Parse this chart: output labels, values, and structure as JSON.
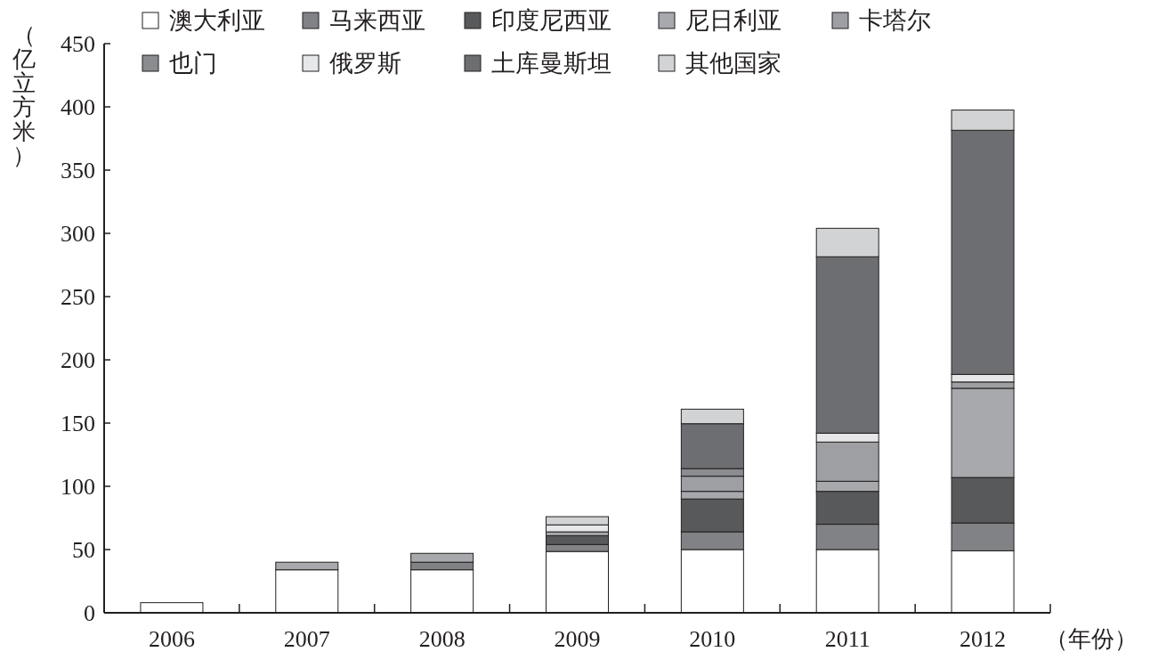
{
  "chart_data": {
    "type": "bar",
    "stacked": true,
    "legend": "top left",
    "ylabel": "（亿立方米）",
    "xlabel": "（年份）",
    "ylim": [
      0,
      450
    ],
    "yticks": [
      0,
      50,
      100,
      150,
      200,
      250,
      300,
      350,
      400,
      450
    ],
    "categories": [
      "2006",
      "2007",
      "2008",
      "2009",
      "2010",
      "2011",
      "2012"
    ],
    "series": [
      {
        "name": "澳大利亚",
        "color": "#ffffff",
        "values": [
          8,
          34,
          34,
          48.5,
          50,
          50,
          49
        ]
      },
      {
        "name": "马来西亚",
        "color": "#808285",
        "values": [
          0,
          0,
          6,
          5.5,
          14,
          20,
          22
        ]
      },
      {
        "name": "印度尼西亚",
        "color": "#58595b",
        "values": [
          0,
          0,
          0,
          7,
          26,
          26,
          36
        ]
      },
      {
        "name": "尼日利亚",
        "color": "#a7a9ac",
        "values": [
          0,
          6,
          7,
          3,
          6,
          8,
          70.5
        ]
      },
      {
        "name": "卡塔尔",
        "color": "#9d9fa2",
        "values": [
          0,
          0,
          0,
          0,
          12,
          31,
          5
        ]
      },
      {
        "name": "也门",
        "color": "#8a8c8f",
        "values": [
          0,
          0,
          0,
          0,
          6,
          0,
          0
        ]
      },
      {
        "name": "俄罗斯",
        "color": "#e6e7e8",
        "values": [
          0,
          0,
          0,
          5.5,
          0,
          7,
          6
        ]
      },
      {
        "name": "土库曼斯坦",
        "color": "#6d6e71",
        "values": [
          0,
          0,
          0,
          0,
          35.5,
          139.5,
          193
        ]
      },
      {
        "name": "其他国家",
        "color": "#d1d3d4",
        "values": [
          0,
          0,
          0,
          6.5,
          11.5,
          22.5,
          16
        ]
      }
    ]
  }
}
